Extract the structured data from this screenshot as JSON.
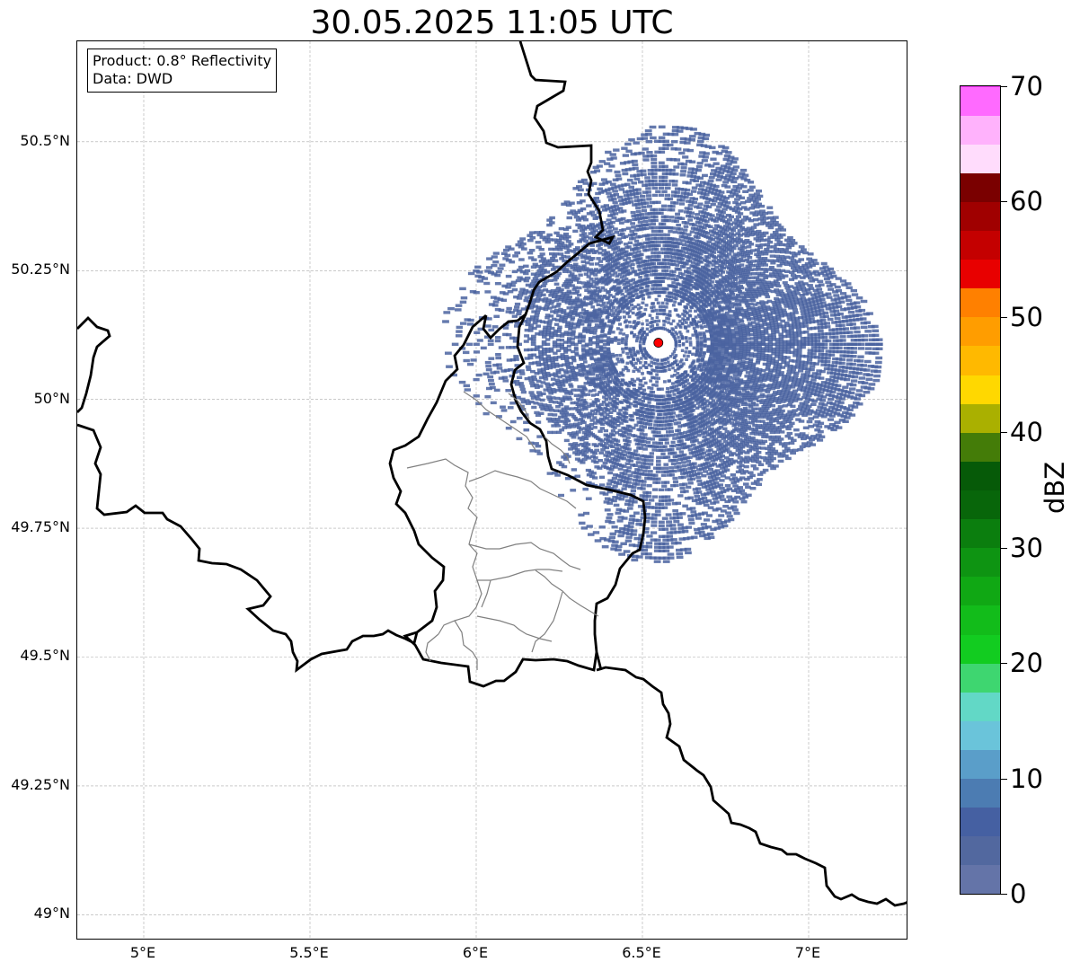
{
  "title": "30.05.2025 11:05 UTC",
  "info": {
    "product": "Product: 0.8° Reflectivity",
    "data": "Data: DWD"
  },
  "map": {
    "lon_range": [
      4.8,
      7.3
    ],
    "lat_range": [
      48.95,
      50.695
    ],
    "lat_ticks": [
      "49°N",
      "49.25°N",
      "49.5°N",
      "49.75°N",
      "50°N",
      "50.25°N",
      "50.5°N"
    ],
    "lat_tick_values": [
      49.0,
      49.25,
      49.5,
      49.75,
      50.0,
      50.25,
      50.5
    ],
    "lon_ticks": [
      "5°E",
      "5.5°E",
      "6°E",
      "6.5°E",
      "7°E"
    ],
    "lon_tick_values": [
      5.0,
      5.5,
      6.0,
      6.5,
      7.0
    ],
    "gridlines": true,
    "radar_site": {
      "lon": 6.548,
      "lat": 50.11,
      "color": "#ff0000"
    },
    "echo_color": "#4a63a0"
  },
  "colorbar": {
    "label": "dBZ",
    "min": 0,
    "max": 70,
    "step": 2.5,
    "tick_labels": [
      "0",
      "10",
      "20",
      "30",
      "40",
      "50",
      "60",
      "70"
    ],
    "tick_values": [
      0,
      10,
      20,
      30,
      40,
      50,
      60,
      70
    ],
    "colors": [
      "#6474a8",
      "#52689f",
      "#4560a2",
      "#4c7cb2",
      "#5a9ec9",
      "#6ac4da",
      "#62d8c6",
      "#3ed670",
      "#12cc20",
      "#12bc1a",
      "#10a814",
      "#0e9412",
      "#0b7e0e",
      "#08660a",
      "#065a08",
      "#447c08",
      "#aab000",
      "#ffd800",
      "#ffb900",
      "#ff9d00",
      "#ff8000",
      "#e80000",
      "#c40000",
      "#a00000",
      "#7a0000",
      "#ffdcfc",
      "#ffb2fc",
      "#ff6aff",
      "#ea30ee"
    ]
  }
}
